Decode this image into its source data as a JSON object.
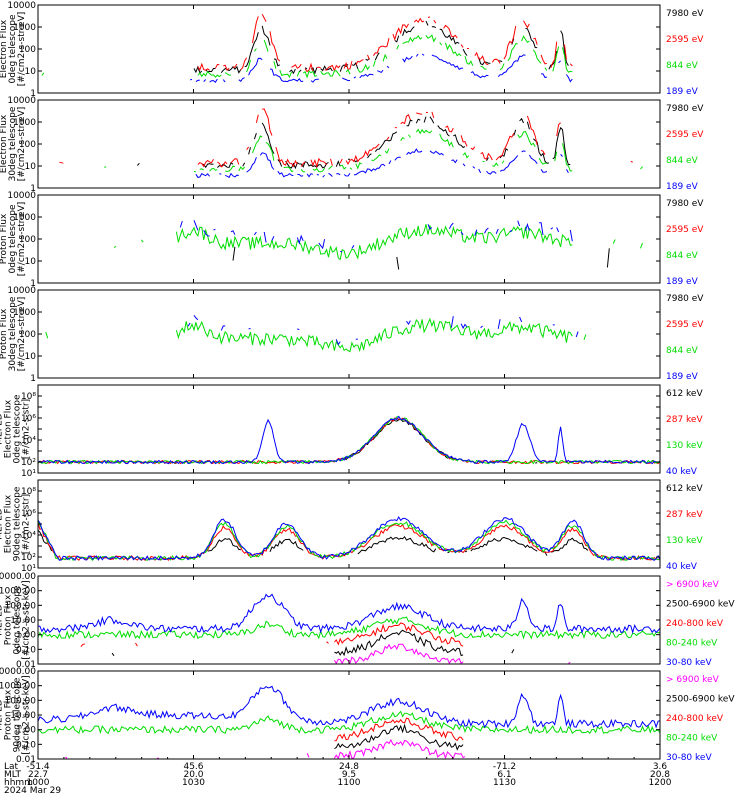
{
  "colors": {
    "black": "#000000",
    "red": "#ff0000",
    "green": "#00dd00",
    "blue": "#0000ff",
    "magenta": "#ff00ff"
  },
  "chart_data": [
    {
      "type": "line",
      "ylabel": [
        "Electron Flux",
        "0deg telescope",
        "[#/cm2-s-str-eV]"
      ],
      "yscale": "log",
      "ylim": [
        1,
        10000
      ],
      "yticks": [
        "1",
        "10",
        "100",
        "1000",
        "10000"
      ],
      "series": [
        {
          "name": "7980 eV",
          "color": "black"
        },
        {
          "name": "2595 eV",
          "color": "red"
        },
        {
          "name": "844 eV",
          "color": "green"
        },
        {
          "name": "189 eV",
          "color": "blue"
        }
      ]
    },
    {
      "type": "line",
      "ylabel": [
        "Electron Flux",
        "30deg telescope",
        "[#/cm2-s-str-eV]"
      ],
      "yscale": "log",
      "ylim": [
        1,
        10000
      ],
      "yticks": [
        "1",
        "10",
        "100",
        "1000",
        "10000"
      ],
      "series": [
        {
          "name": "7980 eV",
          "color": "black"
        },
        {
          "name": "2595 eV",
          "color": "red"
        },
        {
          "name": "844 eV",
          "color": "green"
        },
        {
          "name": "189 eV",
          "color": "blue"
        }
      ]
    },
    {
      "type": "line",
      "ylabel": [
        "Proton Flux",
        "0deg telescope",
        "[#/cm2-s-str-eV]"
      ],
      "yscale": "log",
      "ylim": [
        1,
        10000
      ],
      "yticks": [
        "1",
        "10",
        "100",
        "1000",
        "10000"
      ],
      "series": [
        {
          "name": "7980 eV",
          "color": "black"
        },
        {
          "name": "2595 eV",
          "color": "red"
        },
        {
          "name": "844 eV",
          "color": "green"
        },
        {
          "name": "189 eV",
          "color": "blue"
        }
      ]
    },
    {
      "type": "line",
      "ylabel": [
        "Proton Flux",
        "30deg telescope",
        "[#/cm2-s-str-eV]"
      ],
      "yscale": "log",
      "ylim": [
        1,
        10000
      ],
      "yticks": [
        "1",
        "10",
        "100",
        "1000",
        "10000"
      ],
      "series": [
        {
          "name": "7980 eV",
          "color": "black"
        },
        {
          "name": "2595 eV",
          "color": "red"
        },
        {
          "name": "844 eV",
          "color": "green"
        },
        {
          "name": "189 eV",
          "color": "blue"
        }
      ]
    },
    {
      "type": "line",
      "ylabel": [
        "MEPED",
        "Electron Flux",
        "0deg telescope",
        "[#/cm2-s-str]"
      ],
      "yscale": "log",
      "ylim": [
        10,
        1000000000
      ],
      "yticks": [
        "10¹",
        "10²",
        "10³",
        "10⁴",
        "10⁵",
        "10⁶",
        "10⁷",
        "10⁸",
        "10⁹"
      ],
      "yticks_labeled": [
        "10¹",
        "10²",
        "10⁴",
        "10⁶",
        "10⁸"
      ],
      "series": [
        {
          "name": "612 keV",
          "color": "black"
        },
        {
          "name": "287 keV",
          "color": "red"
        },
        {
          "name": "130 keV",
          "color": "green"
        },
        {
          "name": "40 keV",
          "color": "blue"
        }
      ]
    },
    {
      "type": "line",
      "ylabel": [
        "MEPED",
        "Electron Flux",
        "90deg telescope",
        "[#/cm2-s-str]"
      ],
      "yscale": "log",
      "ylim": [
        10,
        1000000000
      ],
      "yticks": [
        "10¹",
        "10²",
        "10³",
        "10⁴",
        "10⁵",
        "10⁶",
        "10⁷",
        "10⁸",
        "10⁹"
      ],
      "yticks_labeled": [
        "10¹",
        "10²",
        "10⁴",
        "10⁶",
        "10⁸"
      ],
      "series": [
        {
          "name": "612 keV",
          "color": "black"
        },
        {
          "name": "287 keV",
          "color": "red"
        },
        {
          "name": "130 keV",
          "color": "green"
        },
        {
          "name": "40 keV",
          "color": "blue"
        }
      ]
    },
    {
      "type": "line",
      "ylabel": [
        "MEPED",
        "Proton Flux",
        "0deg telescope",
        "[#/cm2-s-str-keV]"
      ],
      "yscale": "log",
      "ylim": [
        0.01,
        10000
      ],
      "yticks": [
        "0.01",
        "0.10",
        "1.00",
        "10.00",
        "100.00",
        "1000.00",
        "10000.00"
      ],
      "series": [
        {
          "name": "> 6900 keV",
          "color": "magenta"
        },
        {
          "name": "2500-6900 keV",
          "color": "black"
        },
        {
          "name": "240-800 keV",
          "color": "red"
        },
        {
          "name": "80-240 keV",
          "color": "green"
        },
        {
          "name": "30-80 keV",
          "color": "blue"
        }
      ]
    },
    {
      "type": "line",
      "ylabel": [
        "MEPED",
        "Proton Flux",
        "90deg telescope",
        "[#/cm2-s-str-keV]"
      ],
      "yscale": "log",
      "ylim": [
        0.01,
        10000
      ],
      "yticks": [
        "0.01",
        "0.10",
        "1.00",
        "10.00",
        "100.00",
        "1000.00",
        "10000.00"
      ],
      "series": [
        {
          "name": "> 6900 keV",
          "color": "magenta"
        },
        {
          "name": "2500-6900 keV",
          "color": "black"
        },
        {
          "name": "240-800 keV",
          "color": "red"
        },
        {
          "name": "80-240 keV",
          "color": "green"
        },
        {
          "name": "30-80 keV",
          "color": "blue"
        }
      ]
    }
  ],
  "x_axis": {
    "rows": [
      {
        "label": "Lat",
        "values": [
          "-51.4",
          "45.6",
          "24.8",
          "-71.2",
          "3.6"
        ]
      },
      {
        "label": "MLT",
        "values": [
          "22.7",
          "20.0",
          "9.5",
          "6.1",
          "20.8"
        ]
      },
      {
        "label": "hhmm",
        "values": [
          "1000",
          "1030",
          "1100",
          "1130",
          "1200"
        ]
      }
    ],
    "date": "2024 Mar 29"
  }
}
